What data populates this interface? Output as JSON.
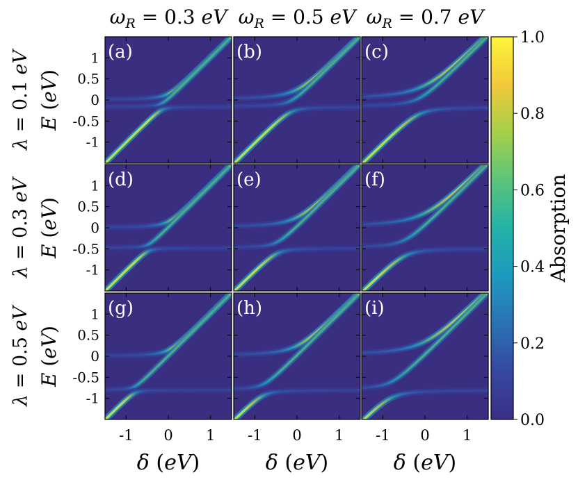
{
  "chart_data": {
    "type": "heatmap",
    "layout": "3x3 grid of absorption heatmaps",
    "column_titles": [
      "ω_R = 0.3 eV",
      "ω_R = 0.5 eV",
      "ω_R = 0.7 eV"
    ],
    "row_titles": [
      "λ = 0.1 eV",
      "λ = 0.3 eV",
      "λ = 0.5 eV"
    ],
    "xlabel": "δ (eV)",
    "ylabel": "E (eV)",
    "xlim": [
      -1.5,
      1.5
    ],
    "ylim": [
      -1.5,
      1.5
    ],
    "x_ticks": [
      -1,
      0,
      1
    ],
    "x_tick_labels": [
      "-1",
      "0",
      "1"
    ],
    "y_ticks": [
      1,
      0.5,
      0,
      -0.5,
      -1
    ],
    "y_tick_labels": [
      "1",
      "0.5",
      "0",
      "-0.5",
      "-1"
    ],
    "colorbar": {
      "label": "Absorption",
      "min": 0.0,
      "max": 1.0,
      "ticks": [
        0.0,
        0.2,
        0.4,
        0.6,
        0.8,
        1.0
      ],
      "tick_labels": [
        "0.0",
        "0.2",
        "0.4",
        "0.6",
        "0.8",
        "1.0"
      ],
      "colormap": "viridis-like",
      "colors": [
        "#3b2f85",
        "#3548a0",
        "#2b72b5",
        "#1e99be",
        "#23b2a7",
        "#5cc47a",
        "#a6d04a",
        "#f2c93a",
        "#fdf53b"
      ]
    },
    "panels": [
      {
        "label": "(a)",
        "omega_R": 0.3,
        "lambda": 0.1
      },
      {
        "label": "(b)",
        "omega_R": 0.5,
        "lambda": 0.1
      },
      {
        "label": "(c)",
        "omega_R": 0.7,
        "lambda": 0.1
      },
      {
        "label": "(d)",
        "omega_R": 0.3,
        "lambda": 0.3
      },
      {
        "label": "(e)",
        "omega_R": 0.5,
        "lambda": 0.3
      },
      {
        "label": "(f)",
        "omega_R": 0.7,
        "lambda": 0.3
      },
      {
        "label": "(g)",
        "omega_R": 0.3,
        "lambda": 0.5
      },
      {
        "label": "(h)",
        "omega_R": 0.5,
        "lambda": 0.5
      },
      {
        "label": "(i)",
        "omega_R": 0.7,
        "lambda": 0.5
      }
    ],
    "background_color": "#3a2e80"
  }
}
